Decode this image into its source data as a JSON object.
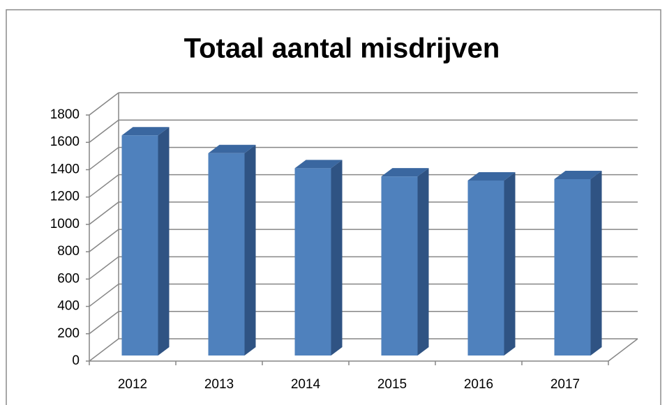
{
  "chart_data": {
    "type": "bar3d",
    "title": "Totaal aantal misdrijven",
    "categories": [
      "2012",
      "2013",
      "2014",
      "2015",
      "2016",
      "2017"
    ],
    "values": [
      1610,
      1480,
      1370,
      1310,
      1280,
      1290
    ],
    "color": "#4f81bd",
    "ylim": [
      0,
      1800
    ],
    "yticks": [
      0,
      200,
      400,
      600,
      800,
      1000,
      1200,
      1400,
      1600,
      1800
    ],
    "grid": true
  }
}
